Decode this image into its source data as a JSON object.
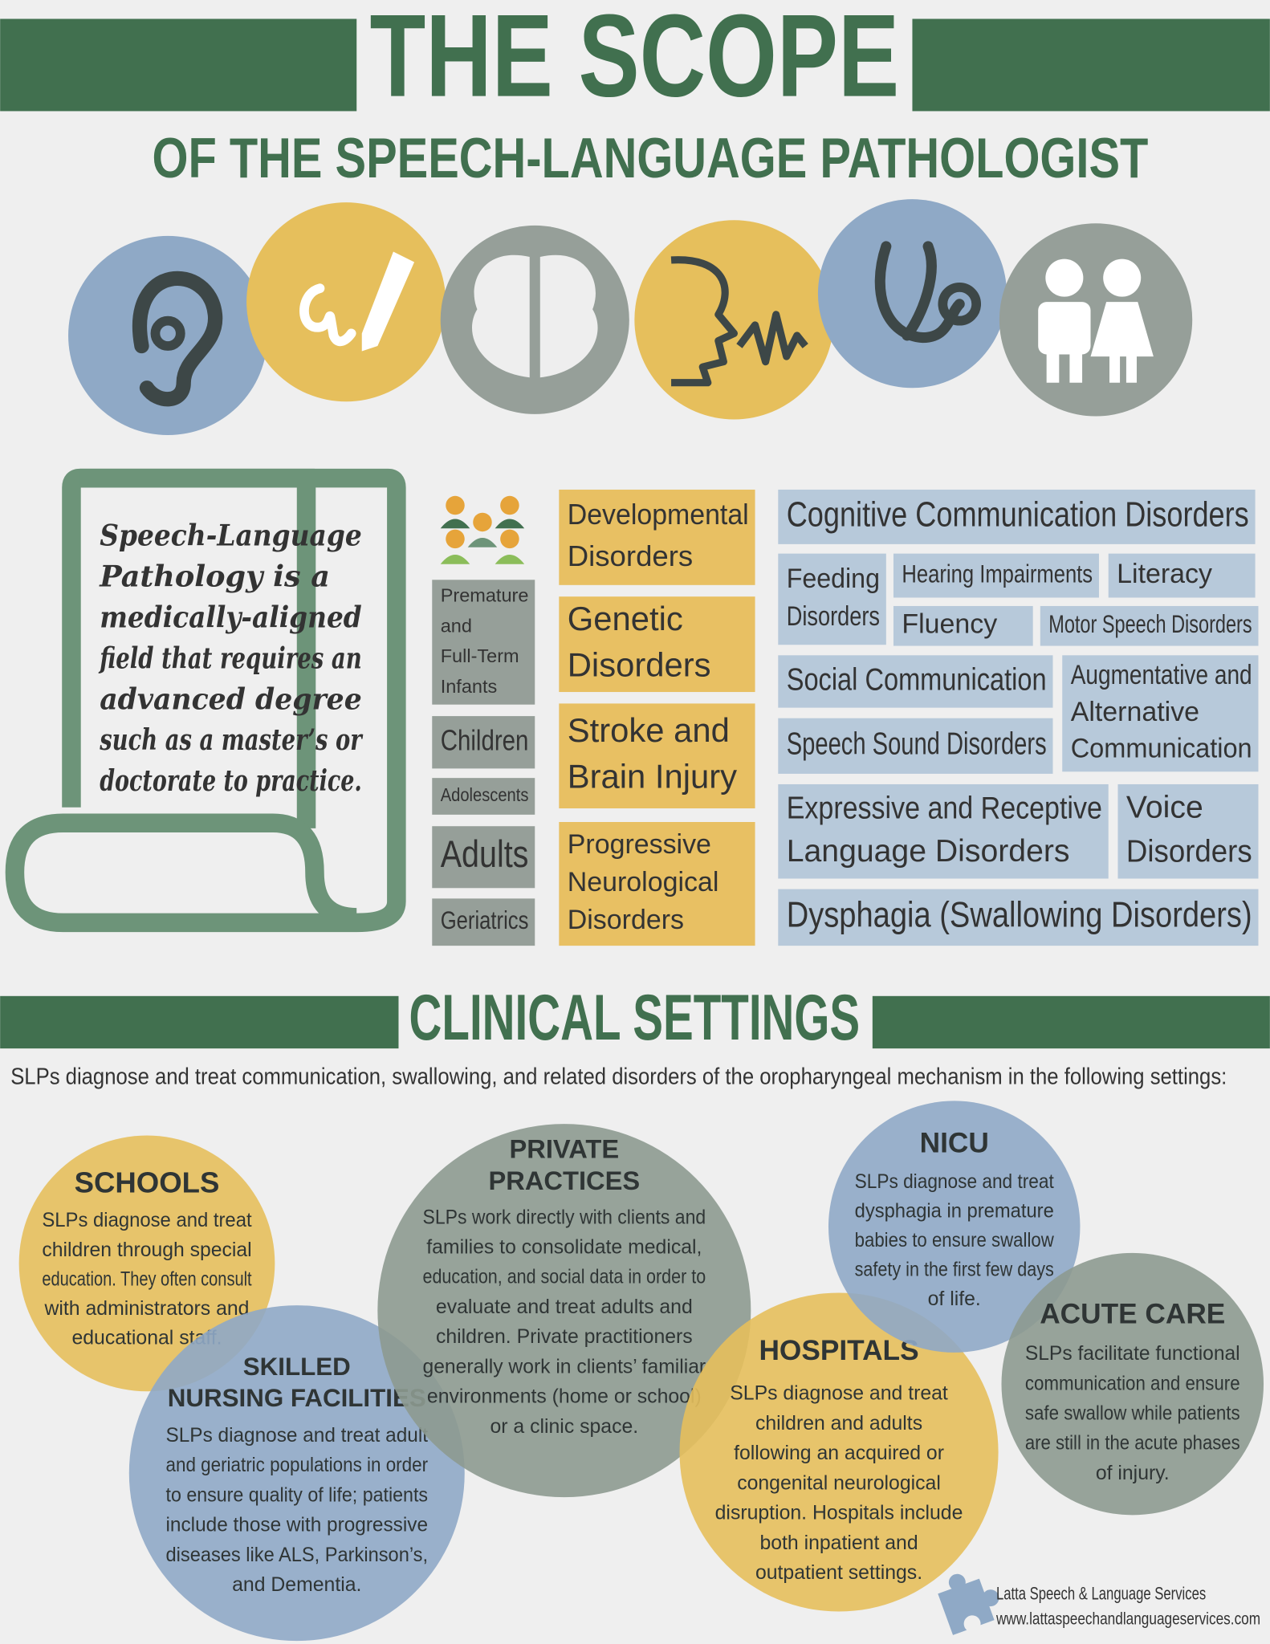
{
  "header": {
    "title": "THE SCOPE",
    "subtitle": "OF THE SPEECH-LANGUAGE PATHOLOGIST"
  },
  "scroll_text": [
    "Speech-Language",
    "Pathology is a",
    "medically-aligned",
    "field that requires an",
    "advanced degree",
    "such as a master’s or",
    "doctorate to practice."
  ],
  "populations": [
    [
      "Premature",
      "and",
      "Full-Term",
      "Infants"
    ],
    [
      "Children"
    ],
    [
      "Adolescents"
    ],
    [
      "Adults"
    ],
    [
      "Geriatrics"
    ]
  ],
  "disorders": [
    [
      "Developmental",
      "Disorders"
    ],
    [
      "Genetic",
      "Disorders"
    ],
    [
      "Stroke and",
      "Brain Injury"
    ],
    [
      "Progressive",
      "Neurological",
      "Disorders"
    ]
  ],
  "areas": [
    [
      "Cognitive Communication Disorders"
    ],
    [
      "Feeding",
      "Disorders"
    ],
    [
      "Hearing Impairments"
    ],
    [
      "Literacy"
    ],
    [
      "Fluency"
    ],
    [
      "Motor Speech Disorders"
    ],
    [
      "Social Communication"
    ],
    [
      "Augmentative and",
      "Alternative",
      "Communication"
    ],
    [
      "Speech Sound Disorders"
    ],
    [
      "Expressive and Receptive",
      "Language Disorders"
    ],
    [
      "Voice",
      "Disorders"
    ],
    [
      "Dysphagia (Swallowing Disorders)"
    ]
  ],
  "clinical": {
    "title": "CLINICAL SETTINGS",
    "intro": "SLPs diagnose and treat communication, swallowing, and related disorders of the oropharyngeal mechanism in the following settings:",
    "settings": [
      {
        "title": [
          "SCHOOLS"
        ],
        "text": [
          "SLPs diagnose and treat",
          "children through special",
          "education. They often consult",
          "with administrators and",
          "educational staff."
        ]
      },
      {
        "title": [
          "SKILLED",
          "NURSING FACILITIES"
        ],
        "text": [
          "SLPs diagnose and treat adult",
          "and geriatric populations in order",
          "to ensure quality of life; patients",
          "include those with progressive",
          "diseases like ALS, Parkinson’s,",
          "and Dementia."
        ]
      },
      {
        "title": [
          "PRIVATE",
          "PRACTICES"
        ],
        "text": [
          "SLPs work directly with clients and",
          "families to consolidate medical,",
          "education, and social data in order to",
          "evaluate and treat adults and",
          "children. Private practitioners",
          "generally work in clients’ familiar",
          "environments (home or school)",
          "or a clinic space."
        ]
      },
      {
        "title": [
          "HOSPITALS"
        ],
        "text": [
          "SLPs diagnose and treat",
          "children and adults",
          "following an acquired or",
          "congenital neurological",
          "disruption. Hospitals include",
          "both inpatient and",
          "outpatient settings."
        ]
      },
      {
        "title": [
          "NICU"
        ],
        "text": [
          "SLPs diagnose and treat",
          "dysphagia in premature",
          "babies to ensure swallow",
          "safety in the first few days",
          "of life."
        ]
      },
      {
        "title": [
          "ACUTE CARE"
        ],
        "text": [
          "SLPs facilitate functional",
          "communication and ensure",
          "safe swallow while patients",
          "are still in the acute phases",
          "of injury."
        ]
      }
    ]
  },
  "footer": {
    "name": "Latta Speech & Language Services",
    "url": "www.lattaspeechandlanguageservices.com"
  }
}
